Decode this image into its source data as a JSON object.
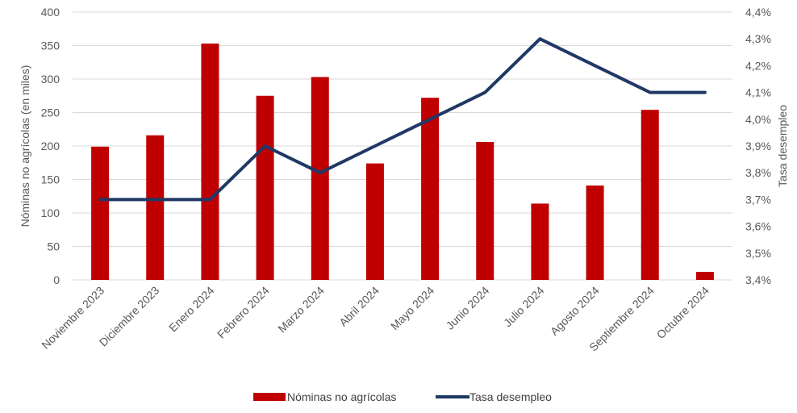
{
  "chart_data": {
    "type": "bar",
    "categories": [
      "Noviembre 2023",
      "Diciembre 2023",
      "Enero 2024",
      "Febrero 2024",
      "Marzo 2024",
      "Abril 2024",
      "Mayo 2024",
      "Junio 2024",
      "Julio 2024",
      "Agosto 2024",
      "Septiembre 2024",
      "Octubre 2024"
    ],
    "series": [
      {
        "name": "Nóminas no agrícolas",
        "type": "bar",
        "axis": "left",
        "color": "#C00000",
        "values": [
          199,
          216,
          353,
          275,
          303,
          174,
          272,
          206,
          114,
          141,
          254,
          12
        ]
      },
      {
        "name": "Tasa desempleo",
        "type": "line",
        "axis": "right",
        "color": "#1F3864",
        "values": [
          3.7,
          3.7,
          3.7,
          3.9,
          3.8,
          3.9,
          4.0,
          4.1,
          4.3,
          4.2,
          4.1,
          4.1
        ]
      }
    ],
    "ylabel": "Nóminas no agrícolas (en miles)",
    "ylim": [
      0,
      400
    ],
    "yticks": [
      "0",
      "50",
      "100",
      "150",
      "200",
      "250",
      "300",
      "350",
      "400"
    ],
    "y2label": "Tasa desempleo",
    "y2lim": [
      3.4,
      4.4
    ],
    "y2ticks": [
      "3,4%",
      "3,5%",
      "3,6%",
      "3,7%",
      "3,8%",
      "3,9%",
      "4,0%",
      "4,1%",
      "4,2%",
      "4,3%",
      "4,4%"
    ],
    "grid": true,
    "legend": "bottom-center",
    "gridColor": "#D9D9D9"
  }
}
